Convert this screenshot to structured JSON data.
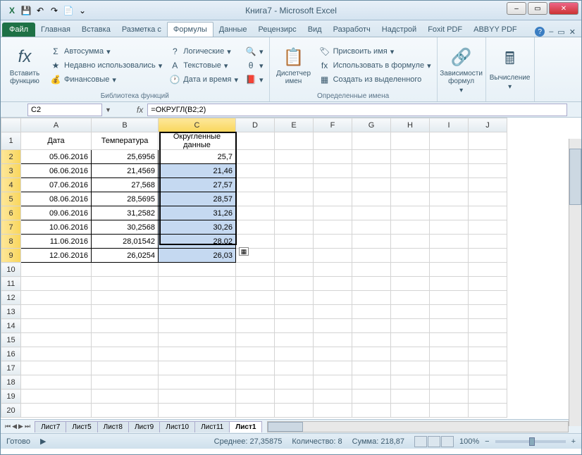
{
  "title": "Книга7  -  Microsoft Excel",
  "qat": [
    "X",
    "💾",
    "↶",
    "↷",
    "📄",
    "⌄"
  ],
  "win": {
    "min": "–",
    "max": "▭",
    "close": "✕"
  },
  "tabs": {
    "file": "Файл",
    "items": [
      "Главная",
      "Вставка",
      "Разметка с",
      "Формулы",
      "Данные",
      "Рецензирс",
      "Вид",
      "Разработч",
      "Надстрой",
      "Foxit PDF",
      "ABBYY PDF"
    ],
    "active": 3,
    "help": "?",
    "collapse": "△",
    "doc_min": "–",
    "doc_max": "▭",
    "doc_close": "✕"
  },
  "ribbon": {
    "g1": {
      "insert_fn": "Вставить функцию",
      "autosum": "Автосумма",
      "recent": "Недавно использовались",
      "financial": "Финансовые",
      "logical": "Логические",
      "text": "Текстовые",
      "datetime": "Дата и время",
      "lookup": "",
      "math": "",
      "more": "",
      "label": "Библиотека функций"
    },
    "g2": {
      "name_mgr": "Диспетчер имен",
      "define": "Присвоить имя",
      "use": "Использовать в формуле",
      "create": "Создать из выделенного",
      "label": "Определенные имена"
    },
    "g3": {
      "trace": "Зависимости формул"
    },
    "g4": {
      "calc": "Вычисление"
    }
  },
  "namebox": "C2",
  "formula": "=ОКРУГЛ(B2;2)",
  "cols": [
    "A",
    "B",
    "C",
    "D",
    "E",
    "F",
    "G",
    "H",
    "I",
    "J"
  ],
  "headers": {
    "A": "Дата",
    "B": "Температура",
    "C": "Округленные данные"
  },
  "rows": [
    {
      "n": 1
    },
    {
      "n": 2,
      "A": "05.06.2016",
      "B": "25,6956",
      "C": "25,7"
    },
    {
      "n": 3,
      "A": "06.06.2016",
      "B": "21,4569",
      "C": "21,46"
    },
    {
      "n": 4,
      "A": "07.06.2016",
      "B": "27,568",
      "C": "27,57"
    },
    {
      "n": 5,
      "A": "08.06.2016",
      "B": "28,5695",
      "C": "28,57"
    },
    {
      "n": 6,
      "A": "09.06.2016",
      "B": "31,2582",
      "C": "31,26"
    },
    {
      "n": 7,
      "A": "10.06.2016",
      "B": "30,2568",
      "C": "30,26"
    },
    {
      "n": 8,
      "A": "11.06.2016",
      "B": "28,01542",
      "C": "28,02"
    },
    {
      "n": 9,
      "A": "12.06.2016",
      "B": "26,0254",
      "C": "26,03"
    },
    {
      "n": 10
    },
    {
      "n": 11
    },
    {
      "n": 12
    },
    {
      "n": 13
    },
    {
      "n": 14
    },
    {
      "n": 15
    },
    {
      "n": 16
    },
    {
      "n": 17
    },
    {
      "n": 18
    },
    {
      "n": 19
    },
    {
      "n": 20
    }
  ],
  "sheets": [
    "Лист7",
    "Лист5",
    "Лист8",
    "Лист9",
    "Лист10",
    "Лист11",
    "Лист1"
  ],
  "active_sheet": 6,
  "status": {
    "ready": "Готово",
    "avg": "Среднее: 27,35875",
    "count": "Количество: 8",
    "sum": "Сумма: 218,87",
    "zoom": "100%"
  },
  "colors": {
    "sel_fill": "#c5d9f1",
    "row_sel": "#f9d65c"
  }
}
